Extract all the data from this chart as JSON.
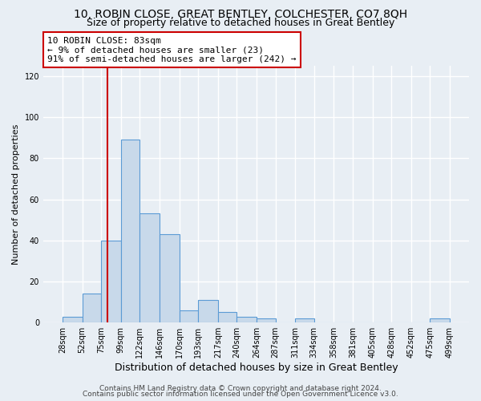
{
  "title1": "10, ROBIN CLOSE, GREAT BENTLEY, COLCHESTER, CO7 8QH",
  "title2": "Size of property relative to detached houses in Great Bentley",
  "xlabel": "Distribution of detached houses by size in Great Bentley",
  "ylabel": "Number of detached properties",
  "bin_edges": [
    28,
    52,
    75,
    99,
    122,
    146,
    170,
    193,
    217,
    240,
    264,
    287,
    311,
    334,
    358,
    381,
    405,
    428,
    452,
    475,
    499
  ],
  "bar_heights": [
    3,
    14,
    40,
    89,
    53,
    43,
    6,
    11,
    5,
    3,
    2,
    0,
    2,
    0,
    0,
    0,
    0,
    0,
    0,
    2
  ],
  "bar_color": "#c8d9ea",
  "bar_edgecolor": "#5b9bd5",
  "property_line_x": 83,
  "property_line_color": "#cc0000",
  "annotation_title": "10 ROBIN CLOSE: 83sqm",
  "annotation_line1": "← 9% of detached houses are smaller (23)",
  "annotation_line2": "91% of semi-detached houses are larger (242) →",
  "annotation_box_facecolor": "#ffffff",
  "annotation_box_edgecolor": "#cc0000",
  "ylim": [
    0,
    125
  ],
  "yticks": [
    0,
    20,
    40,
    60,
    80,
    100,
    120
  ],
  "tick_labels": [
    "28sqm",
    "52sqm",
    "75sqm",
    "99sqm",
    "122sqm",
    "146sqm",
    "170sqm",
    "193sqm",
    "217sqm",
    "240sqm",
    "264sqm",
    "287sqm",
    "311sqm",
    "334sqm",
    "358sqm",
    "381sqm",
    "405sqm",
    "428sqm",
    "452sqm",
    "475sqm",
    "499sqm"
  ],
  "footnote1": "Contains HM Land Registry data © Crown copyright and database right 2024.",
  "footnote2": "Contains public sector information licensed under the Open Government Licence v3.0.",
  "bg_color": "#e8eef4",
  "grid_color": "#ffffff",
  "title1_fontsize": 10,
  "title2_fontsize": 9,
  "xlabel_fontsize": 9,
  "ylabel_fontsize": 8,
  "tick_fontsize": 7,
  "annotation_fontsize": 8,
  "footnote_fontsize": 6.5
}
